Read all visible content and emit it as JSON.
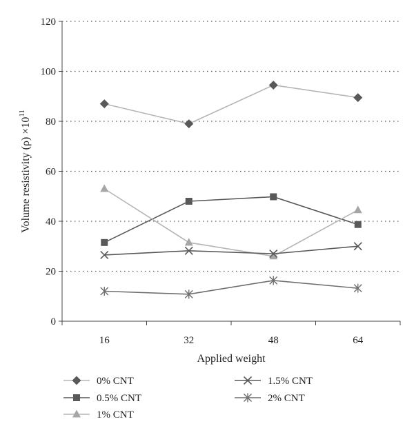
{
  "chart_data": {
    "type": "line",
    "xlabel": "Applied weight",
    "ylabel": "Volume resistivity (ρ) ×10",
    "ylabel_sup": "11",
    "categories": [
      "16",
      "32",
      "48",
      "64"
    ],
    "ylim": [
      0,
      120
    ],
    "yticks": [
      0,
      20,
      40,
      60,
      80,
      100,
      120
    ],
    "grid": "horizontal dotted",
    "legend": "bottom",
    "series": [
      {
        "name": "0% CNT",
        "marker": "diamond",
        "line_color": "#b5b5b5",
        "marker_color": "#595959",
        "values": [
          87,
          79,
          94.5,
          89.5
        ]
      },
      {
        "name": "0.5% CNT",
        "marker": "square",
        "line_color": "#595959",
        "marker_color": "#595959",
        "values": [
          31.5,
          48,
          49.8,
          38.7
        ]
      },
      {
        "name": "1% CNT",
        "marker": "triangle",
        "line_color": "#b5b5b5",
        "marker_color": "#a6a6a6",
        "values": [
          53,
          31.5,
          26,
          44.5
        ]
      },
      {
        "name": "1.5% CNT",
        "marker": "x",
        "line_color": "#595959",
        "marker_color": "#595959",
        "values": [
          26.5,
          28.2,
          27,
          30
        ]
      },
      {
        "name": "2% CNT",
        "marker": "star",
        "line_color": "#6e6e6e",
        "marker_color": "#6e6e6e",
        "values": [
          12,
          10.8,
          16.3,
          13.2
        ]
      }
    ]
  }
}
